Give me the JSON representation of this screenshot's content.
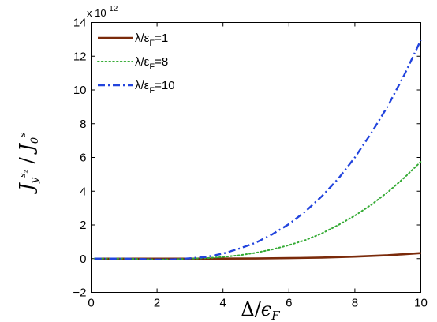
{
  "chart_data": {
    "type": "line",
    "xlabel": "Δ/ε_F",
    "ylabel": "J_y^{s_z} / J_0^s",
    "xlim": [
      0,
      10
    ],
    "ylim": [
      -2,
      14
    ],
    "x_ticks": [
      0,
      2,
      4,
      6,
      8,
      10
    ],
    "y_ticks": [
      -2,
      0,
      2,
      4,
      6,
      8,
      10,
      12,
      14
    ],
    "y_multiplier": "x 10",
    "y_multiplier_exp": "12",
    "grid": false,
    "legend_position": "top-left",
    "series": [
      {
        "name": "λ/ε_F=1",
        "legend_label": "λ/ε",
        "legend_sub": "F",
        "legend_suffix": "=1",
        "color": "#7a2a0a",
        "style": "solid",
        "x": [
          0.1,
          1,
          2,
          3,
          4,
          5,
          6,
          7,
          8,
          9,
          10
        ],
        "y": [
          0,
          0,
          0,
          0,
          0.005,
          0.01,
          0.03,
          0.06,
          0.12,
          0.2,
          0.33
        ]
      },
      {
        "name": "λ/ε_F=8",
        "legend_label": "λ/ε",
        "legend_sub": "F",
        "legend_suffix": "=8",
        "color": "#33aa33",
        "style": "dotted",
        "x": [
          0.1,
          1,
          2,
          2.5,
          3,
          3.5,
          4,
          4.5,
          5,
          5.5,
          6,
          6.5,
          7,
          7.5,
          8,
          8.5,
          9,
          9.5,
          10
        ],
        "y": [
          0,
          0,
          -0.05,
          -0.04,
          0,
          0.03,
          0.1,
          0.2,
          0.35,
          0.55,
          0.8,
          1.1,
          1.5,
          2.0,
          2.55,
          3.2,
          3.95,
          4.8,
          5.75
        ]
      },
      {
        "name": "λ/ε_F=10",
        "legend_label": "λ/ε",
        "legend_sub": "F",
        "legend_suffix": "=10",
        "color": "#2244dd",
        "style": "dashdot",
        "x": [
          0.1,
          1,
          2,
          2.5,
          3,
          3.5,
          4,
          4.5,
          5,
          5.5,
          6,
          6.5,
          7,
          7.5,
          8,
          8.5,
          9,
          9.5,
          10
        ],
        "y": [
          0,
          0,
          -0.05,
          -0.04,
          0.02,
          0.1,
          0.3,
          0.6,
          0.95,
          1.45,
          2.05,
          2.8,
          3.7,
          4.75,
          6.0,
          7.45,
          9.05,
          10.9,
          12.95
        ]
      }
    ]
  }
}
